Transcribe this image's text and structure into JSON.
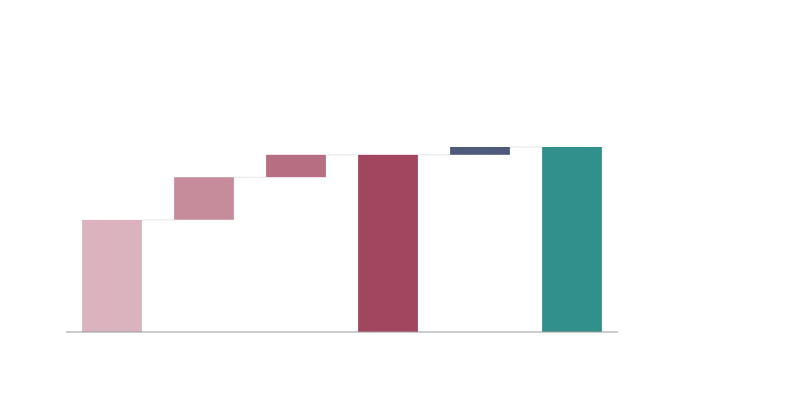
{
  "chart_data": {
    "type": "waterfall",
    "title": "",
    "xlabel": "",
    "ylabel": "",
    "ylim": [
      0,
      140
    ],
    "grid": false,
    "legend": "none",
    "bars": [
      {
        "kind": "delta",
        "value": 50,
        "color": "#dbb3be"
      },
      {
        "kind": "delta",
        "value": 19,
        "color": "#c78c9c"
      },
      {
        "kind": "delta",
        "value": 10,
        "color": "#b86e82"
      },
      {
        "kind": "total",
        "value": 79,
        "color": "#a2455e"
      },
      {
        "kind": "delta",
        "value": 3.5,
        "color": "#4d5a7a"
      },
      {
        "kind": "total",
        "value": 82.5,
        "color": "#32908c"
      }
    ]
  }
}
